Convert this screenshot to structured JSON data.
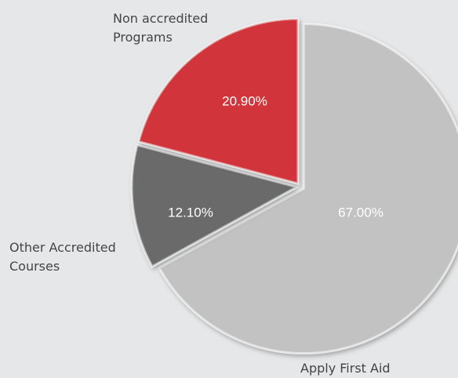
{
  "chart_data": {
    "type": "pie",
    "categories": [
      "Apply First Aid",
      "Other Accredited Courses",
      "Non accredited Programs"
    ],
    "values": [
      67,
      12.1,
      20.9
    ],
    "value_labels": [
      "67.00%",
      "12.10%",
      "20.90%"
    ],
    "colors": [
      "#c2c2c2",
      "#6a6a6a",
      "#d1353a"
    ]
  }
}
